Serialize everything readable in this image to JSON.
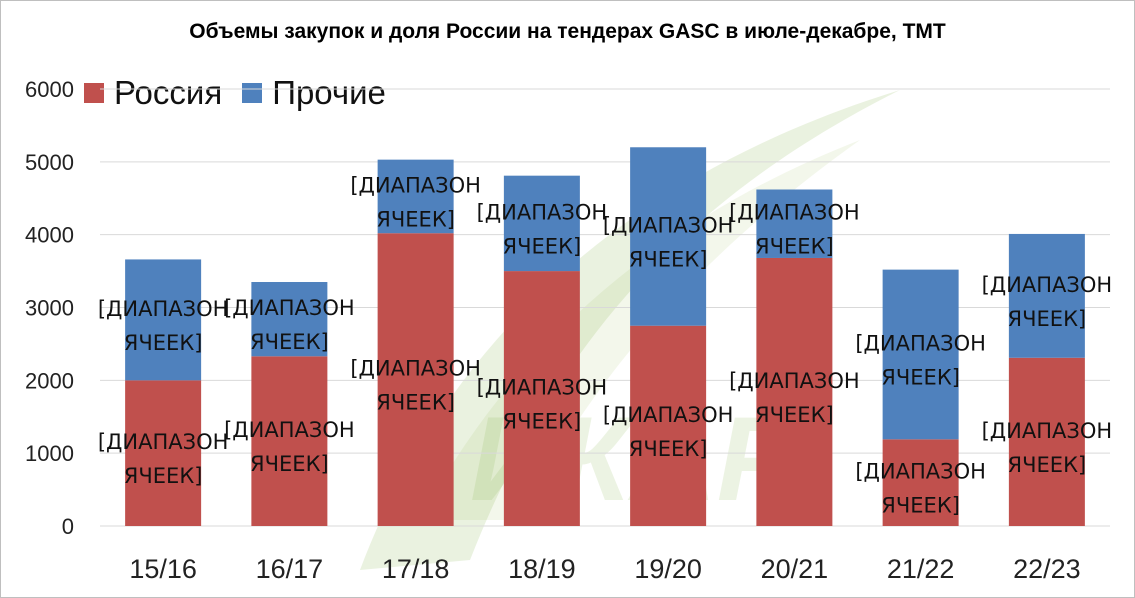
{
  "chart_data": {
    "type": "bar",
    "stacked": true,
    "title": "Объемы закупок и доля России на тендерах GASC в июле-декабре, ТМТ",
    "categories": [
      "15/16",
      "16/17",
      "17/18",
      "18/19",
      "19/20",
      "20/21",
      "21/22",
      "22/23"
    ],
    "series": [
      {
        "name": "Россия",
        "color": "#c0504d",
        "values": [
          2000,
          2330,
          4020,
          3500,
          2750,
          3680,
          1190,
          2310
        ]
      },
      {
        "name": "Прочие",
        "color": "#4f81bd",
        "values": [
          1660,
          1020,
          1010,
          1310,
          2450,
          940,
          2330,
          1700
        ]
      }
    ],
    "data_label_text": "[ДИАПАЗОН ЯЧЕЕК]",
    "ylim": [
      0,
      6000
    ],
    "yticks": [
      0,
      1000,
      2000,
      3000,
      4000,
      5000,
      6000
    ],
    "grid": true,
    "legend_position": "top-left",
    "watermark_text": "ИКАР"
  }
}
